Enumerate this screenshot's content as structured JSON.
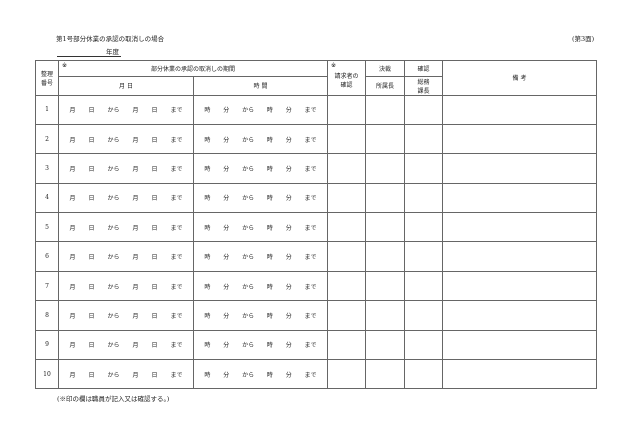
{
  "title": "第1号部分休業の承認の取消しの場合",
  "page_label": "(第3面)",
  "year_label": "年度",
  "header": {
    "number": "整理番号",
    "asterisk": "※",
    "period": "部分休業の承認の取消しの期間",
    "month_day": "月 日",
    "time": "時 間",
    "requester_confirm": "請求者の確認",
    "decision": "決裁",
    "director": "所属長",
    "confirm": "確認",
    "general_affairs_chief": "総務課長",
    "remarks": "備 考"
  },
  "row_template": {
    "month": "月",
    "day": "日",
    "from": "から",
    "until": "まで",
    "hour": "時",
    "minute": "分"
  },
  "rows": [
    "1",
    "2",
    "3",
    "4",
    "5",
    "6",
    "7",
    "8",
    "9",
    "10"
  ],
  "footnote": "(※印の欄は職員が記入又は確認する。)"
}
